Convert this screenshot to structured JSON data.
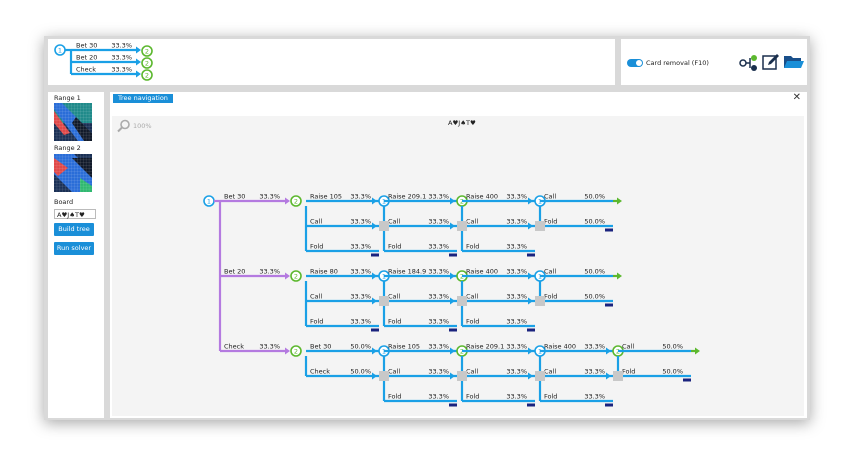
{
  "top_tree": {
    "root": "1",
    "rows": [
      {
        "label": "Bet 30",
        "pct": "33.3%",
        "child": "2"
      },
      {
        "label": "Bet 20",
        "pct": "33.3%",
        "child": "2"
      },
      {
        "label": "Check",
        "pct": "33.3%",
        "child": "2"
      }
    ]
  },
  "toolbar": {
    "card_removal_label": "Card removal (F10)",
    "icons": [
      "tree-structure-icon",
      "edit-icon",
      "folder-icon"
    ]
  },
  "left": {
    "range1_label": "Range 1",
    "range2_label": "Range 2",
    "board_label": "Board",
    "board_value": "A♥J♠T♥",
    "build_tree": "Build tree",
    "run_solver": "Run solver"
  },
  "main": {
    "tab_label": "Tree navigation",
    "zoom_label": "100%",
    "board_title": "A♥J♠T♥",
    "root_player": "1",
    "groups": [
      {
        "action": {
          "label": "Bet 30",
          "pct": "33.3%",
          "player": "2"
        },
        "lanes": [
          {
            "label": "Raise 105",
            "pct": "33.3%",
            "player": "1",
            "next": [
              {
                "label": "Raise 209.1",
                "pct": "33.3%",
                "player": "2",
                "next": [
                  {
                    "label": "Raise 400",
                    "pct": "33.3%",
                    "player": "1",
                    "next": [
                      {
                        "label": "Call",
                        "pct": "50.0%",
                        "term": "green"
                      },
                      {
                        "label": "Fold",
                        "pct": "50.0%",
                        "term": "navy"
                      }
                    ]
                  },
                  {
                    "label": "Call",
                    "pct": "33.3%",
                    "term": "gray"
                  },
                  {
                    "label": "Fold",
                    "pct": "33.3%",
                    "term": "navy"
                  }
                ]
              },
              {
                "label": "Call",
                "pct": "33.3%",
                "term": "gray"
              },
              {
                "label": "Fold",
                "pct": "33.3%",
                "term": "navy"
              }
            ]
          },
          {
            "label": "Call",
            "pct": "33.3%",
            "term": "gray"
          },
          {
            "label": "Fold",
            "pct": "33.3%",
            "term": "navy"
          }
        ]
      },
      {
        "action": {
          "label": "Bet 20",
          "pct": "33.3%",
          "player": "2"
        },
        "lanes": [
          {
            "label": "Raise 80",
            "pct": "33.3%",
            "player": "1",
            "next": [
              {
                "label": "Raise 184.9",
                "pct": "33.3%",
                "player": "2",
                "next": [
                  {
                    "label": "Raise 400",
                    "pct": "33.3%",
                    "player": "1",
                    "next": [
                      {
                        "label": "Call",
                        "pct": "50.0%",
                        "term": "green"
                      },
                      {
                        "label": "Fold",
                        "pct": "50.0%",
                        "term": "navy"
                      }
                    ]
                  },
                  {
                    "label": "Call",
                    "pct": "33.3%",
                    "term": "gray"
                  },
                  {
                    "label": "Fold",
                    "pct": "33.3%",
                    "term": "navy"
                  }
                ]
              },
              {
                "label": "Call",
                "pct": "33.3%",
                "term": "gray"
              },
              {
                "label": "Fold",
                "pct": "33.3%",
                "term": "navy"
              }
            ]
          },
          {
            "label": "Call",
            "pct": "33.3%",
            "term": "gray"
          },
          {
            "label": "Fold",
            "pct": "33.3%",
            "term": "navy"
          }
        ]
      },
      {
        "action": {
          "label": "Check",
          "pct": "33.3%",
          "player": "2"
        },
        "lanes": [
          {
            "label": "Bet 30",
            "pct": "50.0%",
            "player": "1",
            "next": [
              {
                "label": "Raise 105",
                "pct": "33.3%",
                "player": "2",
                "next": [
                  {
                    "label": "Raise 209.1",
                    "pct": "33.3%",
                    "player": "1",
                    "next": [
                      {
                        "label": "Raise 400",
                        "pct": "33.3%",
                        "player": "2",
                        "next": [
                          {
                            "label": "Call",
                            "pct": "50.0%",
                            "term": "green"
                          },
                          {
                            "label": "Fold",
                            "pct": "50.0%",
                            "term": "navy"
                          }
                        ]
                      },
                      {
                        "label": "Call",
                        "pct": "33.3%",
                        "term": "gray"
                      },
                      {
                        "label": "Fold",
                        "pct": "33.3%",
                        "term": "navy"
                      }
                    ]
                  },
                  {
                    "label": "Call",
                    "pct": "33.3%",
                    "term": "gray"
                  },
                  {
                    "label": "Fold",
                    "pct": "33.3%",
                    "term": "navy"
                  }
                ]
              },
              {
                "label": "Call",
                "pct": "33.3%",
                "term": "gray"
              },
              {
                "label": "Fold",
                "pct": "33.3%",
                "term": "navy"
              }
            ]
          },
          {
            "label": "Check",
            "pct": "50.0%",
            "term": "gray"
          }
        ]
      }
    ]
  },
  "colors": {
    "blue": "#1aa0e6",
    "green": "#5cb82e",
    "purple": "#b47ae0",
    "navy": "#1a237e",
    "gray": "#c8c8c8",
    "accent": "#1a8fd8"
  }
}
